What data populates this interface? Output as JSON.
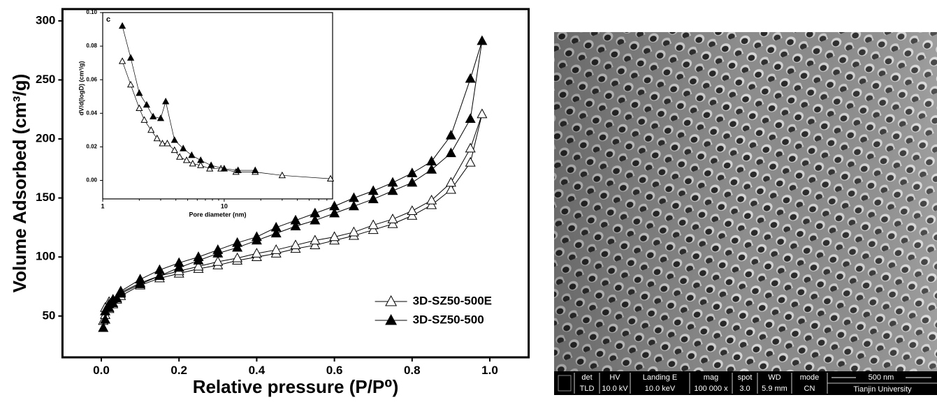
{
  "chart_data": [
    {
      "type": "line",
      "x_label": "Relative pressure (P/P⁰)",
      "y_label": "Volume Adsorbed (cm³/g)",
      "xlim": [
        -0.1,
        1.1
      ],
      "ylim": [
        15,
        310
      ],
      "xticks": [
        {
          "value": 0,
          "label": "0.0"
        },
        {
          "value": 0.2,
          "label": "0.2"
        },
        {
          "value": 0.4,
          "label": "0.4"
        },
        {
          "value": 0.6,
          "label": "0.6"
        },
        {
          "value": 0.8,
          "label": "0.8"
        },
        {
          "value": 1,
          "label": "1.0"
        }
      ],
      "yticks": [
        50,
        100,
        150,
        200,
        250,
        300
      ],
      "legend": "lower right",
      "series": [
        {
          "name": "3D-SZ50-500E",
          "color": "#000000",
          "marker_fill": "#ffffff",
          "x": [
            0.005,
            0.01,
            0.02,
            0.03,
            0.04,
            0.05,
            0.1,
            0.15,
            0.2,
            0.25,
            0.3,
            0.35,
            0.4,
            0.45,
            0.5,
            0.55,
            0.6,
            0.65,
            0.7,
            0.75,
            0.8,
            0.85,
            0.9,
            0.95,
            0.98,
            0.95,
            0.9,
            0.85,
            0.8,
            0.75,
            0.7,
            0.65,
            0.6,
            0.55,
            0.5,
            0.45,
            0.4,
            0.35,
            0.3,
            0.25,
            0.2,
            0.15,
            0.1,
            0.05,
            0.02,
            0.01
          ],
          "values": [
            46,
            51,
            56,
            60,
            64,
            67,
            76,
            82,
            86,
            90,
            93,
            97,
            100,
            103,
            107,
            110,
            114,
            118,
            123,
            128,
            135,
            144,
            157,
            180,
            221,
            192,
            163,
            148,
            139,
            132,
            127,
            121,
            117,
            114,
            110,
            106,
            103,
            99,
            96,
            92,
            88,
            84,
            78,
            70,
            62,
            57
          ]
        },
        {
          "name": "3D-SZ50-500",
          "color": "#000000",
          "marker_fill": "#000000",
          "x": [
            0.005,
            0.01,
            0.02,
            0.03,
            0.04,
            0.05,
            0.1,
            0.15,
            0.2,
            0.25,
            0.3,
            0.35,
            0.4,
            0.45,
            0.5,
            0.55,
            0.6,
            0.65,
            0.7,
            0.75,
            0.8,
            0.85,
            0.9,
            0.95,
            0.98,
            0.95,
            0.9,
            0.85,
            0.8,
            0.75,
            0.7,
            0.65,
            0.6,
            0.55,
            0.5,
            0.45,
            0.4,
            0.35,
            0.3,
            0.25,
            0.2,
            0.15,
            0.1,
            0.05,
            0.03,
            0.02,
            0.01
          ],
          "values": [
            40,
            47,
            57,
            61,
            65,
            69,
            77,
            84,
            91,
            97,
            103,
            108,
            114,
            120,
            126,
            131,
            137,
            143,
            149,
            156,
            163,
            174,
            188,
            217,
            283,
            251,
            203,
            181,
            171,
            163,
            156,
            150,
            143,
            137,
            131,
            125,
            117,
            112,
            106,
            100,
            95,
            89,
            81,
            71,
            64,
            60,
            54
          ]
        }
      ]
    },
    {
      "type": "line",
      "label": "c",
      "x_label": "Pore diameter (nm)",
      "y_label": "dV/d(logD)  (cm³/g)",
      "xscale": "log",
      "xlim": [
        1,
        78
      ],
      "ylim": [
        -0.011,
        0.1
      ],
      "xticks": [
        1,
        10
      ],
      "yticks": [
        {
          "value": 0,
          "label": "0.00"
        },
        {
          "value": 0.02,
          "label": "0.02"
        },
        {
          "value": 0.04,
          "label": "0.04"
        },
        {
          "value": 0.06,
          "label": "0.06"
        },
        {
          "value": 0.08,
          "label": "0.08"
        },
        {
          "value": 0.1,
          "label": "0.10"
        }
      ],
      "series": [
        {
          "color": "#000000",
          "marker_fill": "#ffffff",
          "x": [
            1.45,
            1.7,
            2.0,
            2.2,
            2.5,
            2.8,
            3.1,
            3.4,
            3.9,
            4.3,
            4.9,
            5.5,
            6.4,
            7.6,
            9.4,
            12.5,
            18,
            30,
            75
          ],
          "values": [
            0.071,
            0.057,
            0.043,
            0.036,
            0.03,
            0.025,
            0.022,
            0.022,
            0.018,
            0.014,
            0.012,
            0.01,
            0.009,
            0.007,
            0.007,
            0.005,
            0.005,
            0.003,
            0.001
          ]
        },
        {
          "color": "#000000",
          "marker_fill": "#000000",
          "x": [
            1.45,
            1.7,
            2.0,
            2.3,
            2.6,
            3.0,
            3.3,
            3.9,
            4.6,
            5.4,
            6.4,
            7.8,
            10,
            13,
            18
          ],
          "values": [
            0.092,
            0.073,
            0.052,
            0.045,
            0.038,
            0.037,
            0.047,
            0.024,
            0.019,
            0.015,
            0.012,
            0.009,
            0.007,
            0.006,
            0.006
          ]
        }
      ]
    }
  ],
  "image": {
    "info_bar": [
      {
        "label": "det",
        "value": "TLD"
      },
      {
        "label": "HV",
        "value": "10.0 kV"
      },
      {
        "label": "Landing E",
        "value": "10.0 keV"
      },
      {
        "label": "mag",
        "value": "100 000 x"
      },
      {
        "label": "spot",
        "value": "3.0"
      },
      {
        "label": "WD",
        "value": "5.9 mm"
      },
      {
        "label": "mode",
        "value": "CN"
      }
    ],
    "scale_bar": "500 nm",
    "institution": "Tianjin University"
  }
}
